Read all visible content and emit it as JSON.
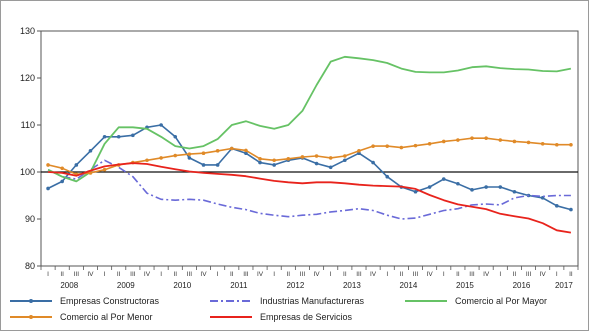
{
  "chart_data": {
    "type": "line",
    "title": "",
    "xlabel": "",
    "ylabel": "",
    "ylim": [
      80,
      130
    ],
    "yticks": [
      80,
      90,
      100,
      110,
      120,
      130
    ],
    "reference_line": 100,
    "grid": false,
    "legend_position": "bottom",
    "quarter_labels": [
      "I",
      "II",
      "III",
      "IV",
      "I",
      "II",
      "III",
      "IV",
      "I",
      "II",
      "III",
      "IV",
      "I",
      "II",
      "III",
      "IV",
      "I",
      "II",
      "III",
      "IV",
      "I",
      "II",
      "III",
      "IV",
      "I",
      "II",
      "III",
      "IV",
      "I",
      "II",
      "III",
      "IV",
      "I",
      "II",
      "III",
      "IV",
      "I",
      "II"
    ],
    "years": [
      "2008",
      "2009",
      "2010",
      "2011",
      "2012",
      "2013",
      "2014",
      "2015",
      "2016",
      "2017"
    ],
    "series": [
      {
        "name": "Empresas Constructoras",
        "color": "#3a6ea5",
        "dash": "solid",
        "marker": true,
        "values": [
          96.5,
          98,
          101.5,
          104.5,
          107.5,
          107.5,
          107.8,
          109.5,
          110,
          107.5,
          103,
          101.5,
          101.5,
          105,
          104,
          102,
          101.5,
          102.5,
          103,
          101.8,
          101,
          102.5,
          104,
          102,
          99,
          96.8,
          95.8,
          96.8,
          98.5,
          97.5,
          96.2,
          96.8,
          96.8,
          95.8,
          95,
          94.5,
          92.8,
          92
        ]
      },
      {
        "name": "Industrias Manufactureras",
        "color": "#6a6ad8",
        "dash": "dashdot",
        "marker": false,
        "values": [
          100.5,
          99,
          98.5,
          100.5,
          102.5,
          101,
          99,
          95.5,
          94.2,
          94,
          94.2,
          94,
          93.2,
          92.5,
          92,
          91.2,
          90.8,
          90.5,
          90.8,
          91,
          91.5,
          91.8,
          92.2,
          91.8,
          90.8,
          90,
          90.2,
          91,
          91.8,
          92.2,
          93,
          93.2,
          93,
          94.5,
          95,
          94.8,
          95,
          95
        ]
      },
      {
        "name": "Comercio al Por Mayor",
        "color": "#66c265",
        "dash": "solid",
        "marker": false,
        "values": [
          100.5,
          99,
          98,
          100,
          106,
          109.5,
          109.5,
          109.2,
          107.5,
          105.5,
          105,
          105.5,
          107,
          110,
          110.8,
          109.8,
          109.2,
          110,
          113,
          118.5,
          123.5,
          124.5,
          124.2,
          123.8,
          123.2,
          122,
          121.3,
          121.2,
          121.2,
          121.6,
          122.3,
          122.5,
          122.1,
          121.9,
          121.8,
          121.5,
          121.4,
          122
        ]
      },
      {
        "name": "Comercio al Por Menor",
        "color": "#e08a28",
        "dash": "solid",
        "marker": true,
        "values": [
          101.5,
          100.8,
          99.5,
          99.8,
          100.5,
          101.5,
          102,
          102.5,
          103,
          103.5,
          103.8,
          104,
          104.5,
          105,
          104.6,
          102.8,
          102.5,
          102.8,
          103.2,
          103.4,
          103,
          103.4,
          104.5,
          105.5,
          105.5,
          105.2,
          105.6,
          106,
          106.5,
          106.8,
          107.2,
          107.2,
          106.8,
          106.5,
          106.3,
          106,
          105.8,
          105.8
        ]
      },
      {
        "name": "Empresas de Servicios",
        "color": "#e8231c",
        "dash": "solid",
        "marker": false,
        "values": [
          100,
          99.8,
          99.2,
          100.3,
          101.2,
          101.6,
          101.9,
          101.7,
          101.1,
          100.6,
          100.1,
          99.8,
          99.6,
          99.4,
          99.1,
          98.6,
          98.1,
          97.8,
          97.6,
          97.8,
          97.8,
          97.6,
          97.3,
          97.1,
          97,
          96.9,
          96.4,
          95.1,
          94,
          93.1,
          92.6,
          92.1,
          91.1,
          90.6,
          90.1,
          89.1,
          87.6,
          87.1
        ]
      }
    ]
  }
}
